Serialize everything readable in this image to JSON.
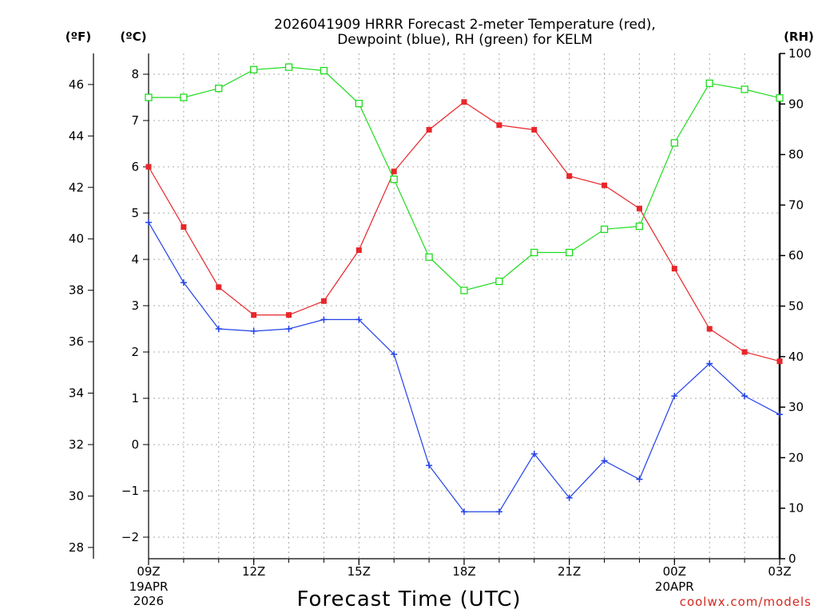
{
  "chart_data": {
    "type": "line",
    "title_line1": "2026041909 HRRR Forecast 2-meter Temperature (red),",
    "title_line2": "Dewpoint (blue), RH (green) for KELM",
    "xlabel": "Forecast Time (UTC)",
    "units": {
      "fahrenheit": "(ºF)",
      "celsius": "(ºC)",
      "rh": "(RH)"
    },
    "x_hours": [
      0,
      1,
      2,
      3,
      4,
      5,
      6,
      7,
      8,
      9,
      10,
      11,
      12,
      13,
      14,
      15,
      16,
      17,
      18
    ],
    "xlim": [
      0,
      18
    ],
    "x_ticks": [
      {
        "hour": 0,
        "label": "09Z",
        "sub1": "19APR",
        "sub2": "2026"
      },
      {
        "hour": 3,
        "label": "12Z",
        "sub1": "",
        "sub2": ""
      },
      {
        "hour": 6,
        "label": "15Z",
        "sub1": "",
        "sub2": ""
      },
      {
        "hour": 9,
        "label": "18Z",
        "sub1": "",
        "sub2": ""
      },
      {
        "hour": 12,
        "label": "21Z",
        "sub1": "",
        "sub2": ""
      },
      {
        "hour": 15,
        "label": "00Z",
        "sub1": "20APR",
        "sub2": ""
      },
      {
        "hour": 18,
        "label": "03Z",
        "sub1": "",
        "sub2": ""
      }
    ],
    "ylim_celsius": [
      -2.5,
      8.5
    ],
    "celsius_ticks": [
      "8",
      "7",
      "6",
      "5",
      "4",
      "3",
      "2",
      "1",
      "0",
      "−1",
      "−2"
    ],
    "fahrenheit_ticks": [
      "46",
      "44",
      "42",
      "40",
      "38",
      "36",
      "34",
      "32",
      "30",
      "28"
    ],
    "ylim_rh": [
      0,
      100
    ],
    "rh_ticks": [
      "100",
      "90",
      "80",
      "70",
      "60",
      "50",
      "40",
      "30",
      "20",
      "10",
      "0"
    ],
    "series": [
      {
        "name": "2-meter Temperature",
        "unit": "C",
        "color": "#e8262a",
        "marker": "filled-square",
        "values": [
          6.0,
          4.7,
          3.4,
          2.8,
          2.8,
          3.1,
          4.2,
          5.9,
          6.8,
          7.4,
          6.9,
          6.8,
          5.8,
          5.6,
          5.1,
          3.8,
          2.5,
          2.0,
          1.8
        ]
      },
      {
        "name": "Dewpoint",
        "unit": "C",
        "color": "#2342e8",
        "marker": "plus",
        "values": [
          4.8,
          3.5,
          2.5,
          2.45,
          2.5,
          2.7,
          2.7,
          1.95,
          -0.45,
          -1.45,
          -1.45,
          -0.2,
          -1.15,
          -0.35,
          -0.75,
          1.05,
          1.75,
          1.05,
          0.65
        ]
      },
      {
        "name": "Relative Humidity",
        "unit": "%",
        "color": "#1fdc1f",
        "marker": "open-square",
        "values": [
          91.3,
          91.3,
          93.1,
          96.8,
          97.3,
          96.6,
          90.1,
          75.1,
          59.7,
          53.1,
          54.9,
          60.6,
          60.6,
          65.2,
          65.8,
          82.3,
          94.1,
          92.9,
          91.2
        ]
      }
    ],
    "credit": "coolwx.com/models"
  }
}
